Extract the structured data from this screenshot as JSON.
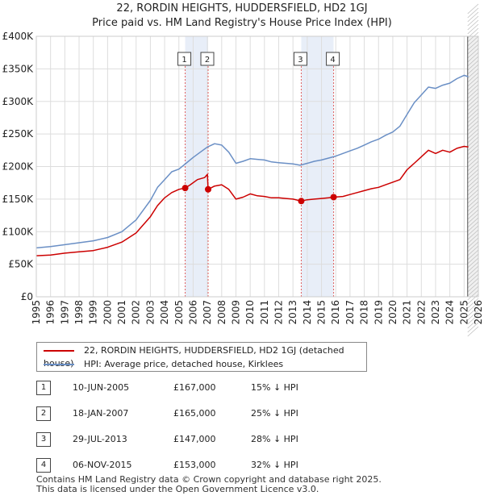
{
  "chart_data": {
    "type": "line",
    "title": "22, RORDIN HEIGHTS, HUDDERSFIELD, HD2 1GJ",
    "subtitle": "Price paid vs. HM Land Registry's House Price Index (HPI)",
    "ylim": [
      0,
      400000
    ],
    "xlim": [
      1995,
      2026
    ],
    "y_ticks": [
      0,
      50000,
      100000,
      150000,
      200000,
      250000,
      300000,
      350000,
      400000
    ],
    "y_tick_labels": [
      "£0",
      "£50K",
      "£100K",
      "£150K",
      "£200K",
      "£250K",
      "£300K",
      "£350K",
      "£400K"
    ],
    "x_ticks": [
      "1995",
      "1996",
      "1997",
      "1998",
      "1999",
      "2000",
      "2001",
      "2002",
      "2003",
      "2004",
      "2005",
      "2006",
      "2007",
      "2008",
      "2009",
      "2010",
      "2011",
      "2012",
      "2013",
      "2014",
      "2015",
      "2016",
      "2017",
      "2018",
      "2019",
      "2020",
      "2021",
      "2022",
      "2023",
      "2024",
      "2025",
      "2026"
    ],
    "grid": true,
    "forecast_start": 2025.25,
    "series": [
      {
        "name": "22, RORDIN HEIGHTS, HUDDERSFIELD, HD2 1GJ (detached house)",
        "color": "#cc0000",
        "x": [
          1995,
          1996,
          1997,
          1998,
          1999,
          2000,
          2001,
          2002,
          2003,
          2003.5,
          2004,
          2004.5,
          2005,
          2005.45,
          2005.8,
          2006.3,
          2006.8,
          2007.0,
          2007.05,
          2007.5,
          2008,
          2008.5,
          2009,
          2009.5,
          2010,
          2010.5,
          2011,
          2011.5,
          2012,
          2012.5,
          2013,
          2013.58,
          2014,
          2014.5,
          2015,
          2015.5,
          2015.85,
          2016.5,
          2017,
          2017.5,
          2018,
          2018.5,
          2019,
          2019.5,
          2020,
          2020.5,
          2021,
          2021.5,
          2022,
          2022.5,
          2023,
          2023.5,
          2024,
          2024.5,
          2025,
          2025.3
        ],
        "values": [
          63000,
          64000,
          67000,
          69000,
          71000,
          76000,
          84000,
          98000,
          123000,
          140000,
          152000,
          160000,
          165000,
          167000,
          172000,
          180000,
          183000,
          188000,
          165000,
          170000,
          172000,
          165000,
          150000,
          153000,
          158000,
          155000,
          154000,
          152000,
          152000,
          151000,
          150000,
          147000,
          149000,
          150000,
          151000,
          152000,
          153000,
          154000,
          157000,
          160000,
          163000,
          166000,
          168000,
          172000,
          176000,
          180000,
          195000,
          205000,
          215000,
          225000,
          220000,
          225000,
          222000,
          228000,
          231000,
          230000
        ]
      },
      {
        "name": "HPI: Average price, detached house, Kirklees",
        "color": "#6a8fc5",
        "x": [
          1995,
          1996,
          1997,
          1998,
          1999,
          2000,
          2001,
          2002,
          2003,
          2003.5,
          2004,
          2004.5,
          2005,
          2005.5,
          2006,
          2006.5,
          2007,
          2007.5,
          2008,
          2008.5,
          2009,
          2009.5,
          2010,
          2010.5,
          2011,
          2011.5,
          2012,
          2012.5,
          2013,
          2013.5,
          2014,
          2014.5,
          2015,
          2015.5,
          2016,
          2016.5,
          2017,
          2017.5,
          2018,
          2018.5,
          2019,
          2019.5,
          2020,
          2020.5,
          2021,
          2021.5,
          2022,
          2022.5,
          2023,
          2023.5,
          2024,
          2024.5,
          2025,
          2025.3
        ],
        "values": [
          75000,
          77000,
          80000,
          83000,
          86000,
          91000,
          100000,
          118000,
          148000,
          168000,
          180000,
          192000,
          196000,
          205000,
          214000,
          222000,
          230000,
          235000,
          233000,
          222000,
          205000,
          208000,
          212000,
          211000,
          210000,
          207000,
          206000,
          205000,
          204000,
          202000,
          205000,
          208000,
          210000,
          213000,
          216000,
          220000,
          224000,
          228000,
          233000,
          238000,
          242000,
          248000,
          253000,
          262000,
          280000,
          298000,
          310000,
          322000,
          320000,
          325000,
          328000,
          335000,
          340000,
          338000
        ]
      }
    ],
    "sales": [
      {
        "num": "1",
        "year": 2005.44,
        "price": 167000
      },
      {
        "num": "2",
        "year": 2007.05,
        "price": 165000
      },
      {
        "num": "3",
        "year": 2013.58,
        "price": 147000
      },
      {
        "num": "4",
        "year": 2015.85,
        "price": 153000
      }
    ],
    "shaded_periods": [
      [
        2005.44,
        2007.05
      ],
      [
        2013.58,
        2015.85
      ]
    ]
  },
  "legend": {
    "property_label": "22, RORDIN HEIGHTS, HUDDERSFIELD, HD2 1GJ (detached house)",
    "hpi_label": "HPI: Average price, detached house, Kirklees"
  },
  "sales_table": [
    {
      "num": "1",
      "date": "10-JUN-2005",
      "price": "£167,000",
      "hpi": "15% ↓ HPI"
    },
    {
      "num": "2",
      "date": "18-JAN-2007",
      "price": "£165,000",
      "hpi": "25% ↓ HPI"
    },
    {
      "num": "3",
      "date": "29-JUL-2013",
      "price": "£147,000",
      "hpi": "28% ↓ HPI"
    },
    {
      "num": "4",
      "date": "06-NOV-2015",
      "price": "£153,000",
      "hpi": "32% ↓ HPI"
    }
  ],
  "footer": {
    "line1": "Contains HM Land Registry data © Crown copyright and database right 2025.",
    "line2": "This data is licensed under the Open Government Licence v3.0."
  }
}
